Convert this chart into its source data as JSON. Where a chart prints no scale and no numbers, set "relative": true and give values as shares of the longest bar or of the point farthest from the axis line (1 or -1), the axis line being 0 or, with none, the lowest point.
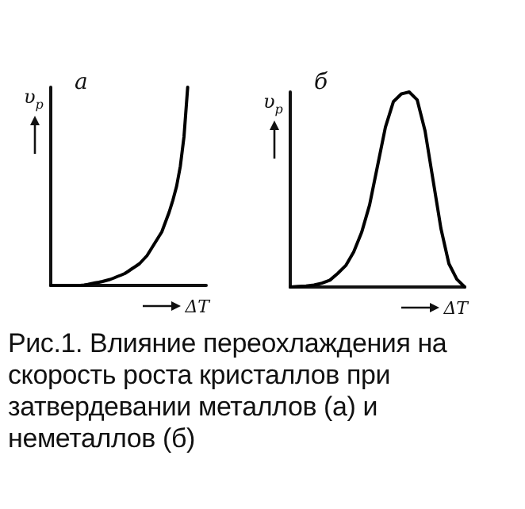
{
  "chart_data": [
    {
      "type": "line",
      "title": "а",
      "xlabel": "ΔT",
      "ylabel": "υ$_{р}$",
      "relative": true,
      "categories": [
        null,
        null,
        null,
        null,
        null,
        null,
        null,
        null,
        null,
        null,
        null,
        null,
        null,
        null,
        null,
        null,
        null,
        null,
        null,
        null,
        null,
        null,
        null,
        null,
        null,
        null,
        null,
        null,
        null,
        null,
        null,
        null,
        null,
        null,
        null,
        null,
        null,
        null,
        null,
        null,
        null,
        null,
        null
      ],
      "series": [
        {
          "color": "#000000",
          "values": [
            0,
            0,
            0,
            0,
            0,
            0,
            0,
            0,
            0,
            0.002,
            0.005,
            0.009,
            0.013,
            0.016,
            0.02,
            0.025,
            0.03,
            0.037,
            0.045,
            0.052,
            0.06,
            0.072,
            0.085,
            0.097,
            0.11,
            0.13,
            0.15,
            0.18,
            0.21,
            0.24,
            0.27,
            0.32,
            0.37,
            0.43,
            0.5,
            0.6,
            0.75,
            1,
            null,
            null,
            null,
            null,
            null
          ]
        }
      ],
      "annotations": [
        "Рис.1. Влияние переохлаждения на скорость роста кристаллов при затвердевании металлов (а) и неметаллов (б)"
      ]
    },
    {
      "type": "line",
      "title": "б",
      "xlabel": "ΔT",
      "ylabel": "υ$_{р}$",
      "relative": true,
      "categories": [
        null,
        null,
        null,
        null,
        null,
        null,
        null,
        null,
        null,
        null,
        null,
        null,
        null,
        null,
        null,
        null,
        null,
        null,
        null,
        null,
        null,
        null,
        null
      ],
      "series": [
        {
          "color": "#000000",
          "values": [
            0,
            0.003,
            0.005,
            0.01,
            0.02,
            0.035,
            0.07,
            0.11,
            0.18,
            0.28,
            0.42,
            0.62,
            0.82,
            0.95,
            0.99,
            1,
            0.96,
            0.8,
            0.55,
            0.3,
            0.12,
            0.04,
            0
          ]
        }
      ]
    }
  ]
}
